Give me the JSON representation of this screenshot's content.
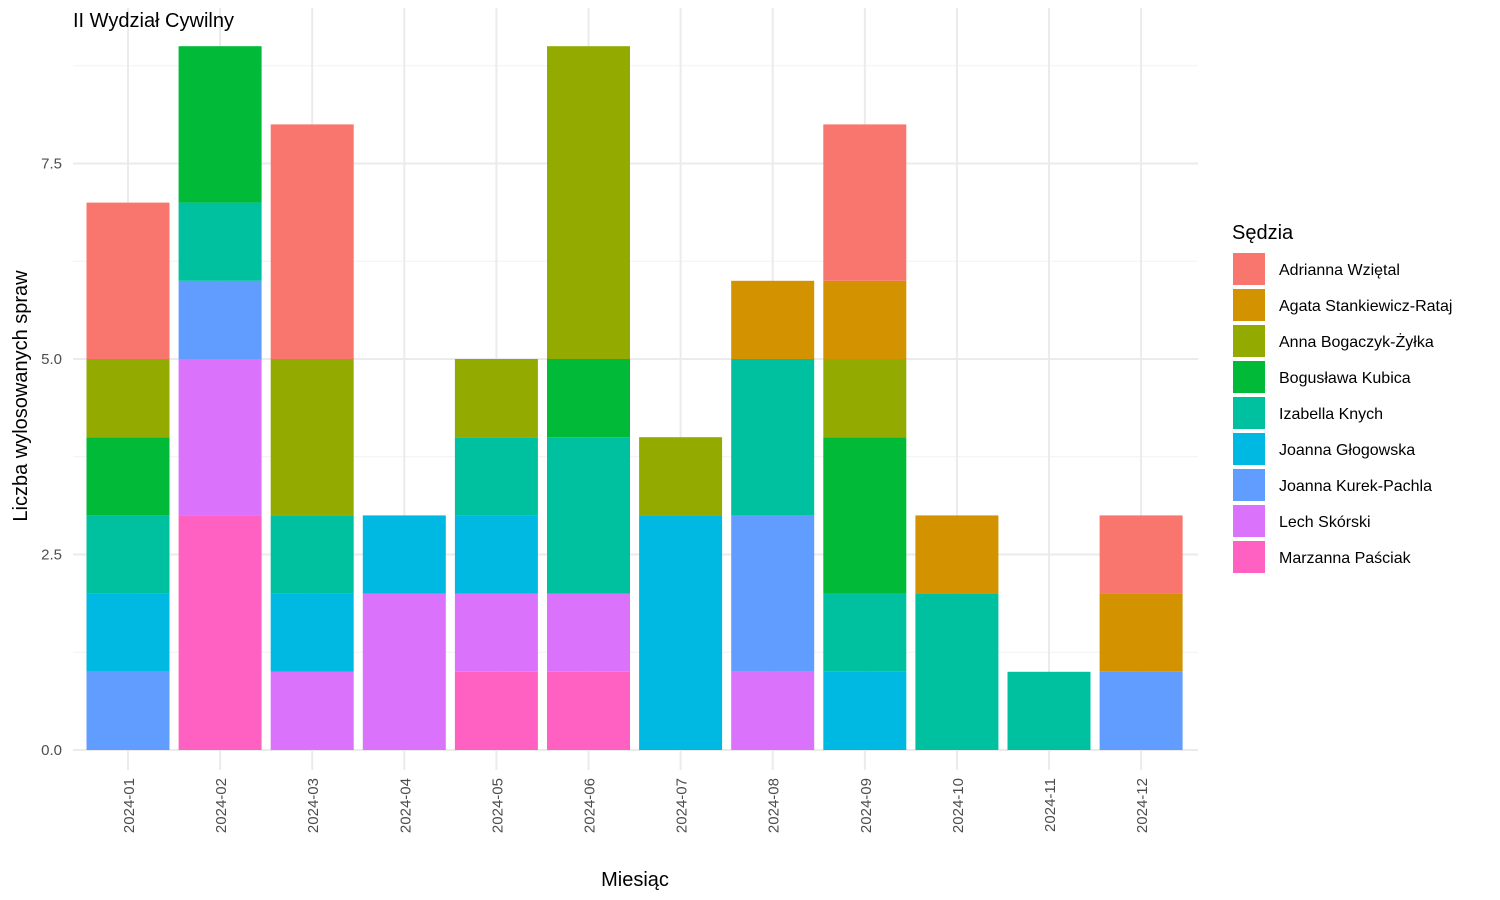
{
  "chart_data": {
    "type": "bar",
    "stacked": true,
    "title": "II Wydział Cywilny",
    "xlabel": "Miesiąc",
    "ylabel": "Liczba wylosowanych spraw",
    "ylim": [
      0,
      9
    ],
    "yticks": [
      "0.0",
      "2.5",
      "5.0",
      "7.5"
    ],
    "ytick_values": [
      0,
      2.5,
      5,
      7.5
    ],
    "grid": true,
    "legend_title": "Sędzia",
    "legend_position": "right",
    "categories": [
      "2024-01",
      "2024-02",
      "2024-03",
      "2024-04",
      "2024-05",
      "2024-06",
      "2024-07",
      "2024-08",
      "2024-09",
      "2024-10",
      "2024-11",
      "2024-12"
    ],
    "series": [
      {
        "name": "Adrianna Wziętal",
        "color": "#F8766D",
        "values": [
          2,
          0,
          3,
          0,
          0,
          0,
          0,
          0,
          2,
          0,
          0,
          1
        ]
      },
      {
        "name": "Agata Stankiewicz-Rataj",
        "color": "#D39200",
        "values": [
          0,
          0,
          0,
          0,
          0,
          0,
          0,
          1,
          1,
          1,
          0,
          1
        ]
      },
      {
        "name": "Anna Bogaczyk-Żyłka",
        "color": "#93AA00",
        "values": [
          1,
          0,
          2,
          0,
          1,
          4,
          1,
          0,
          1,
          0,
          0,
          0
        ]
      },
      {
        "name": "Bogusława Kubica",
        "color": "#00BA38",
        "values": [
          1,
          2,
          0,
          0,
          0,
          1,
          0,
          0,
          2,
          0,
          0,
          0
        ]
      },
      {
        "name": "Izabella Knych",
        "color": "#00C19F",
        "values": [
          1,
          1,
          1,
          0,
          1,
          2,
          0,
          2,
          1,
          2,
          1,
          0
        ]
      },
      {
        "name": "Joanna Głogowska",
        "color": "#00B9E3",
        "values": [
          1,
          0,
          1,
          1,
          1,
          0,
          3,
          0,
          1,
          0,
          0,
          0
        ]
      },
      {
        "name": "Joanna Kurek-Pachla",
        "color": "#619CFF",
        "values": [
          1,
          1,
          0,
          0,
          0,
          0,
          0,
          2,
          0,
          0,
          0,
          1
        ]
      },
      {
        "name": "Lech Skórski",
        "color": "#DB72FB",
        "values": [
          0,
          2,
          1,
          2,
          1,
          1,
          0,
          1,
          0,
          0,
          0,
          0
        ]
      },
      {
        "name": "Marzanna Paściak",
        "color": "#FF61C3",
        "values": [
          0,
          3,
          0,
          0,
          1,
          1,
          0,
          0,
          0,
          0,
          0,
          0
        ]
      }
    ]
  }
}
